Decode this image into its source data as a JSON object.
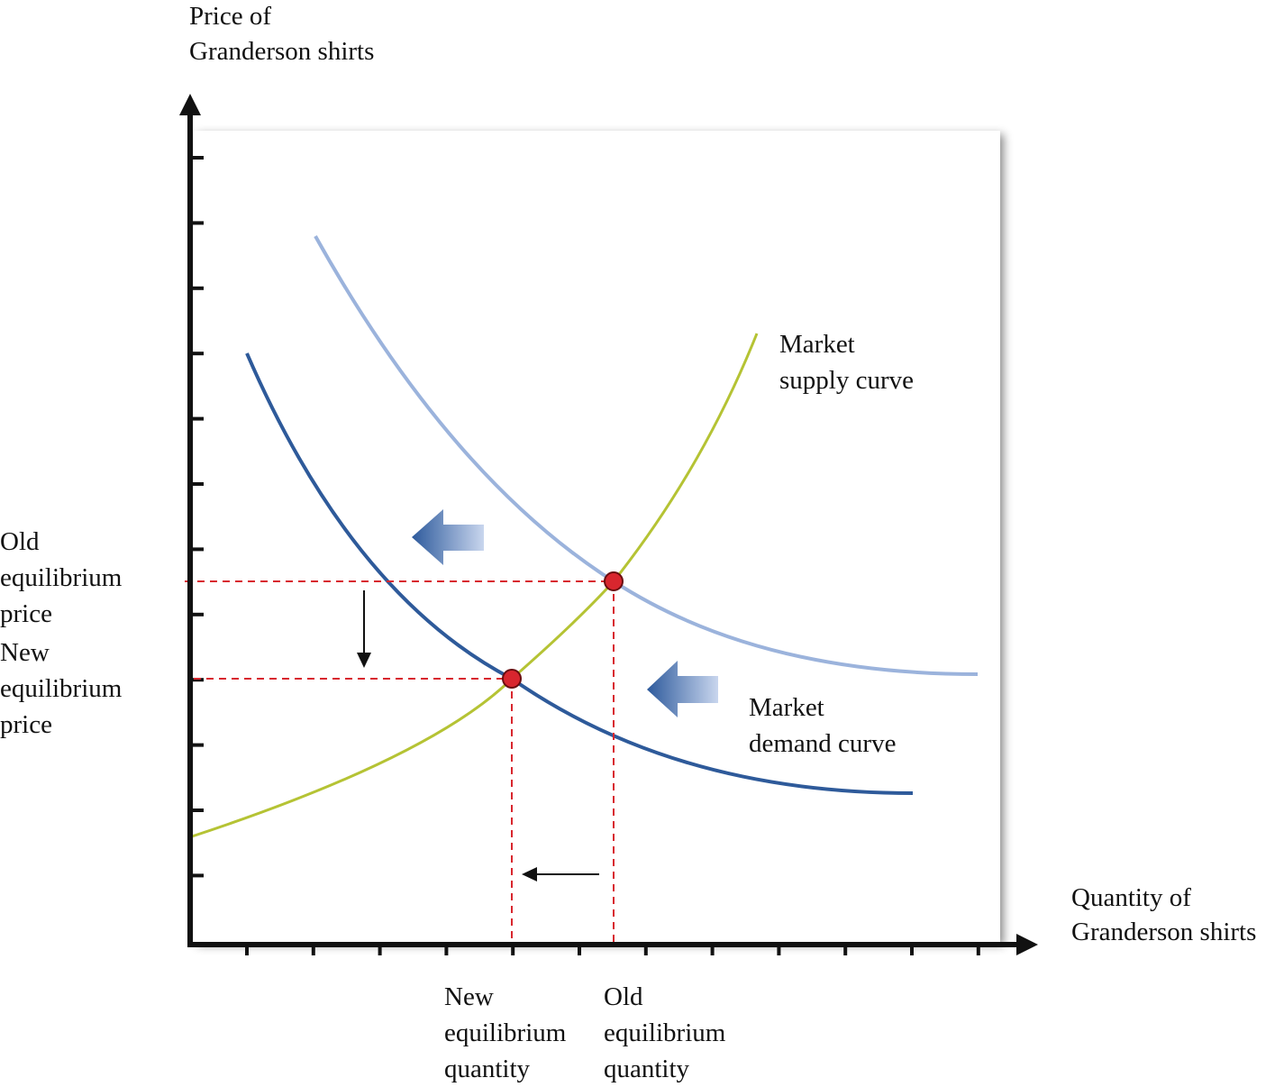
{
  "y_axis": {
    "label_lines": [
      "Price of",
      "Granderson shirts"
    ]
  },
  "x_axis": {
    "label_lines": [
      "Quantity of",
      "Granderson shirts"
    ]
  },
  "curves": {
    "supply": {
      "label_lines": [
        "Market",
        "supply curve"
      ]
    },
    "demand": {
      "label_lines": [
        "Market",
        "demand curve"
      ]
    }
  },
  "price_labels": {
    "old": {
      "label_lines": [
        "Old",
        "equilibrium",
        "price"
      ]
    },
    "new": {
      "label_lines": [
        "New",
        "equilibrium",
        "price"
      ]
    }
  },
  "quantity_labels": {
    "new": {
      "label_lines": [
        "New",
        "equilibrium",
        "quantity"
      ]
    },
    "old": {
      "label_lines": [
        "Old",
        "equilibrium",
        "quantity"
      ]
    }
  }
}
